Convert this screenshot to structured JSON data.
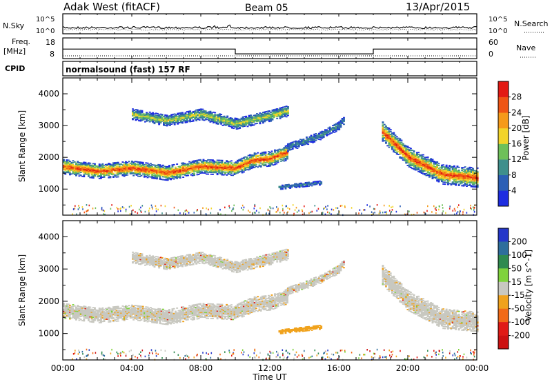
{
  "header": {
    "station": "Adak West (fitACF)",
    "beam": "Beam 05",
    "date": "13/Apr/2015"
  },
  "strips": {
    "nsky_label": "N.Sky",
    "nsky_tick_top": "10^5",
    "nsky_tick_bottom": "10^0",
    "nsearch_label": "N.Search",
    "nsearch_tick_top": "10^5",
    "nsearch_tick_bottom": "10^0",
    "freq_label_1": "Freq.",
    "freq_label_2": "[MHz]",
    "freq_tick_top": "18",
    "freq_tick_bottom": "8",
    "nave_label": "Nave",
    "nave_tick_top": "60",
    "nave_tick_bottom": "0",
    "cpid_label": "CPID",
    "cpid_text": "normalsound (fast) 157 RF"
  },
  "axes": {
    "y_label": "Slant Range [km]",
    "x_label": "Time UT",
    "x_ticks": [
      "00:00",
      "04:00",
      "08:00",
      "12:00",
      "16:00",
      "20:00",
      "00:00"
    ],
    "y_ticks": [
      "1000",
      "2000",
      "3000",
      "4000"
    ]
  },
  "colorbars": {
    "power": {
      "label": "Power [dB]",
      "ticks": [
        "4",
        "8",
        "12",
        "16",
        "20",
        "24",
        "28"
      ],
      "colors": [
        "#1e2de0",
        "#2c5fb5",
        "#3f8f8c",
        "#6ec05a",
        "#f2d42a",
        "#f59a1a",
        "#ef5514",
        "#e31a14"
      ]
    },
    "velocity": {
      "label": "Velocity [m s^-1]",
      "ticks": [
        "200",
        "100",
        "50",
        "15",
        "-15",
        "-50",
        "-100",
        "-200"
      ],
      "colors": [
        "#2537c9",
        "#2e6e9c",
        "#2f8a4f",
        "#7fd23c",
        "#c8c8c0",
        "#f0a21c",
        "#f16a17",
        "#e01b16",
        "#cc1212"
      ]
    }
  },
  "chart_data": [
    {
      "type": "line",
      "panel": "Frequency / Nave",
      "x_range_hours": [
        0,
        24
      ],
      "frequency_mhz": {
        "x": [
          0,
          10,
          10,
          18,
          18,
          24
        ],
        "y": [
          12.6,
          12.6,
          10.3,
          10.3,
          12.6,
          12.6
        ]
      },
      "nave": {
        "x": [
          0,
          24
        ],
        "y": [
          8,
          8
        ]
      },
      "ylim_freq": [
        8,
        18
      ],
      "ylim_nave": [
        0,
        60
      ]
    },
    {
      "type": "heatmap",
      "panel": "Power",
      "x_range_hours": [
        0,
        24
      ],
      "ylim_km": [
        180,
        4500
      ],
      "xlabel": "Time UT",
      "ylabel": "Slant Range [km]",
      "colorbar_label": "Power [dB]",
      "colorbar_range": [
        0,
        30
      ],
      "echo_regions": [
        {
          "name": "main band",
          "t": [
            0,
            2,
            4,
            6,
            8,
            10,
            11,
            12,
            13
          ],
          "range_km": [
            1700,
            1550,
            1650,
            1500,
            1700,
            1650,
            1900,
            1950,
            2150
          ],
          "peak_db": 28
        },
        {
          "name": "upper patch",
          "t": [
            4,
            6,
            8,
            10,
            12,
            13
          ],
          "range_km": [
            3350,
            3150,
            3350,
            3050,
            3300,
            3450
          ],
          "peak_db": 16
        },
        {
          "name": "rising band",
          "t": [
            13,
            15,
            16,
            16.3
          ],
          "range_km": [
            2300,
            2700,
            3000,
            3200
          ],
          "peak_db": 8
        },
        {
          "name": "low patch",
          "t": [
            12.5,
            15
          ],
          "range_km": [
            1050,
            1200
          ],
          "peak_db": 8
        },
        {
          "name": "late band",
          "t": [
            18.5,
            20,
            22,
            24
          ],
          "range_km": [
            2800,
            2000,
            1450,
            1350
          ],
          "peak_db": 28
        }
      ]
    },
    {
      "type": "heatmap",
      "panel": "Velocity",
      "x_range_hours": [
        0,
        24
      ],
      "ylim_km": [
        180,
        4500
      ],
      "xlabel": "Time UT",
      "ylabel": "Slant Range [km]",
      "colorbar_label": "Velocity [m s^-1]",
      "colorbar_range": [
        -200,
        200
      ],
      "echo_regions": [
        {
          "name": "main band",
          "dominant_velocity": "-15 to 15",
          "accent_velocity": "-50"
        },
        {
          "name": "low patch",
          "dominant_velocity": "-50"
        },
        {
          "name": "late band",
          "dominant_velocity": "-15 to 15"
        }
      ]
    }
  ]
}
